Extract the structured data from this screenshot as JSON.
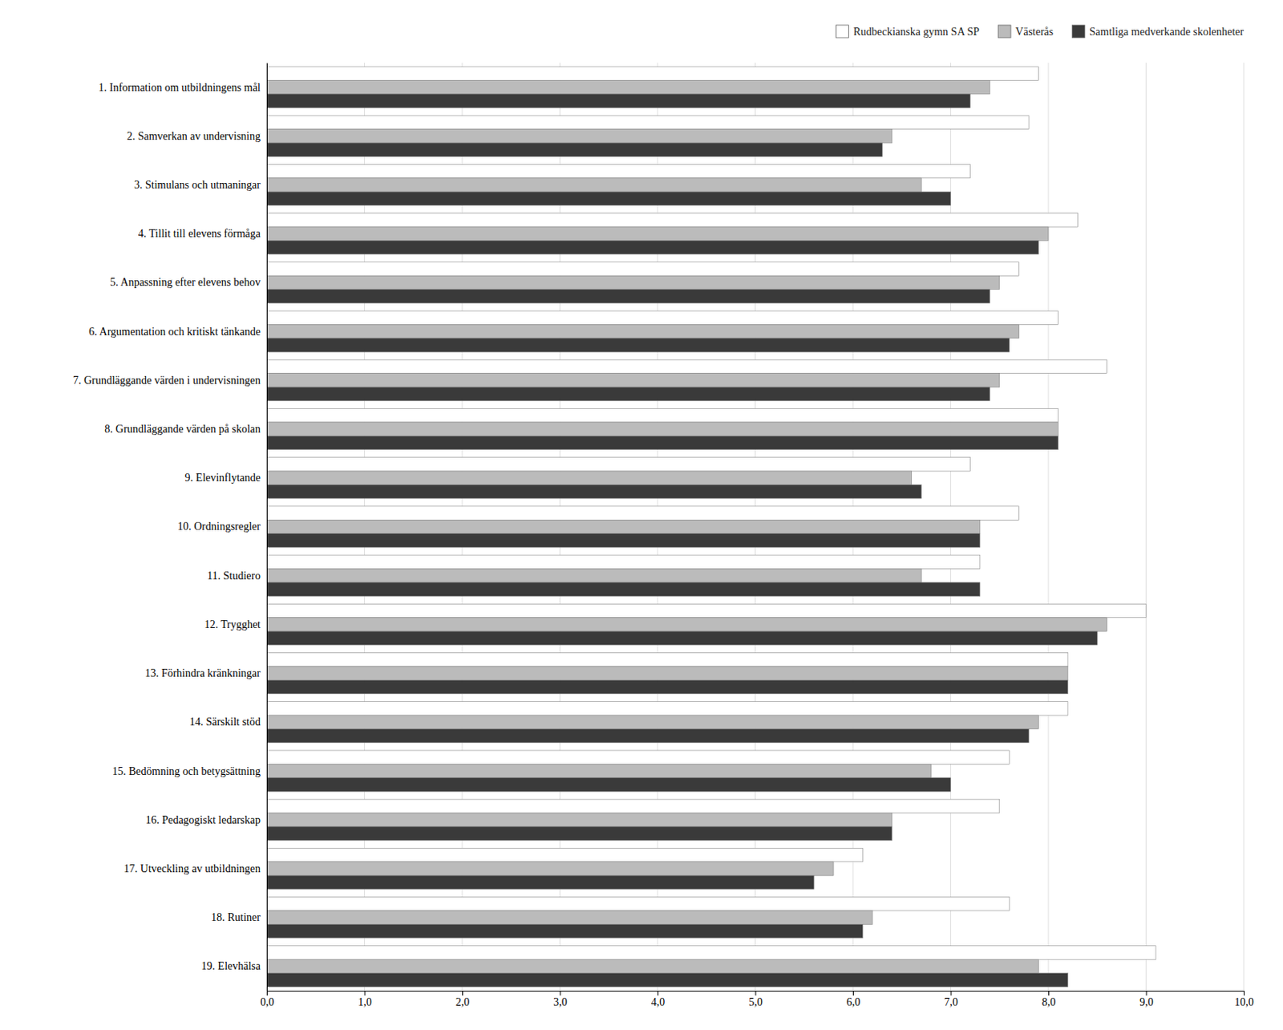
{
  "chart_data": {
    "type": "bar",
    "orientation": "horizontal",
    "categories": [
      "1. Information om utbildningens mål",
      "2. Samverkan av undervisning",
      "3. Stimulans och utmaningar",
      "4. Tillit till elevens förmåga",
      "5. Anpassning efter elevens behov",
      "6. Argumentation och kritiskt tänkande",
      "7. Grundläggande värden i undervisningen",
      "8. Grundläggande värden på skolan",
      "9. Elevinflytande",
      "10. Ordningsregler",
      "11. Studiero",
      "12. Trygghet",
      "13. Förhindra kränkningar",
      "14. Särskilt stöd",
      "15. Bedömning och betygsättning",
      "16. Pedagogiskt ledarskap",
      "17. Utveckling av utbildningen",
      "18. Rutiner",
      "19. Elevhälsa"
    ],
    "series": [
      {
        "name": "Rudbeckianska gymn SA SP",
        "color": "#FFFFFF",
        "values": [
          7.9,
          7.8,
          7.2,
          8.3,
          7.7,
          8.1,
          8.6,
          8.1,
          7.2,
          7.7,
          7.3,
          9.0,
          8.2,
          8.2,
          7.6,
          7.5,
          6.1,
          7.6,
          9.1
        ]
      },
      {
        "name": "Västerås",
        "color": "#BBBBBB",
        "values": [
          7.4,
          6.4,
          6.7,
          8.0,
          7.5,
          7.7,
          7.5,
          8.1,
          6.6,
          7.3,
          6.7,
          8.6,
          8.2,
          7.9,
          6.8,
          6.4,
          5.8,
          6.2,
          7.9
        ]
      },
      {
        "name": "Samtliga medverkande skolenheter",
        "color": "#3A3A3A",
        "values": [
          7.2,
          6.3,
          7.0,
          7.9,
          7.4,
          7.6,
          7.4,
          8.1,
          6.7,
          7.3,
          7.3,
          8.5,
          8.2,
          7.8,
          7.0,
          6.4,
          5.6,
          6.1,
          8.2
        ]
      }
    ],
    "xlim": [
      0,
      10
    ],
    "xticks": [
      {
        "value": 0.0,
        "label": "0,0"
      },
      {
        "value": 1.0,
        "label": "1,0"
      },
      {
        "value": 2.0,
        "label": "2,0"
      },
      {
        "value": 3.0,
        "label": "3,0"
      },
      {
        "value": 4.0,
        "label": "4,0"
      },
      {
        "value": 5.0,
        "label": "5,0"
      },
      {
        "value": 6.0,
        "label": "6,0"
      },
      {
        "value": 7.0,
        "label": "7,0"
      },
      {
        "value": 8.0,
        "label": "8,0"
      },
      {
        "value": 9.0,
        "label": "9,0"
      },
      {
        "value": 10.0,
        "label": "10,0"
      }
    ],
    "grid": true,
    "legend": "upper right"
  }
}
